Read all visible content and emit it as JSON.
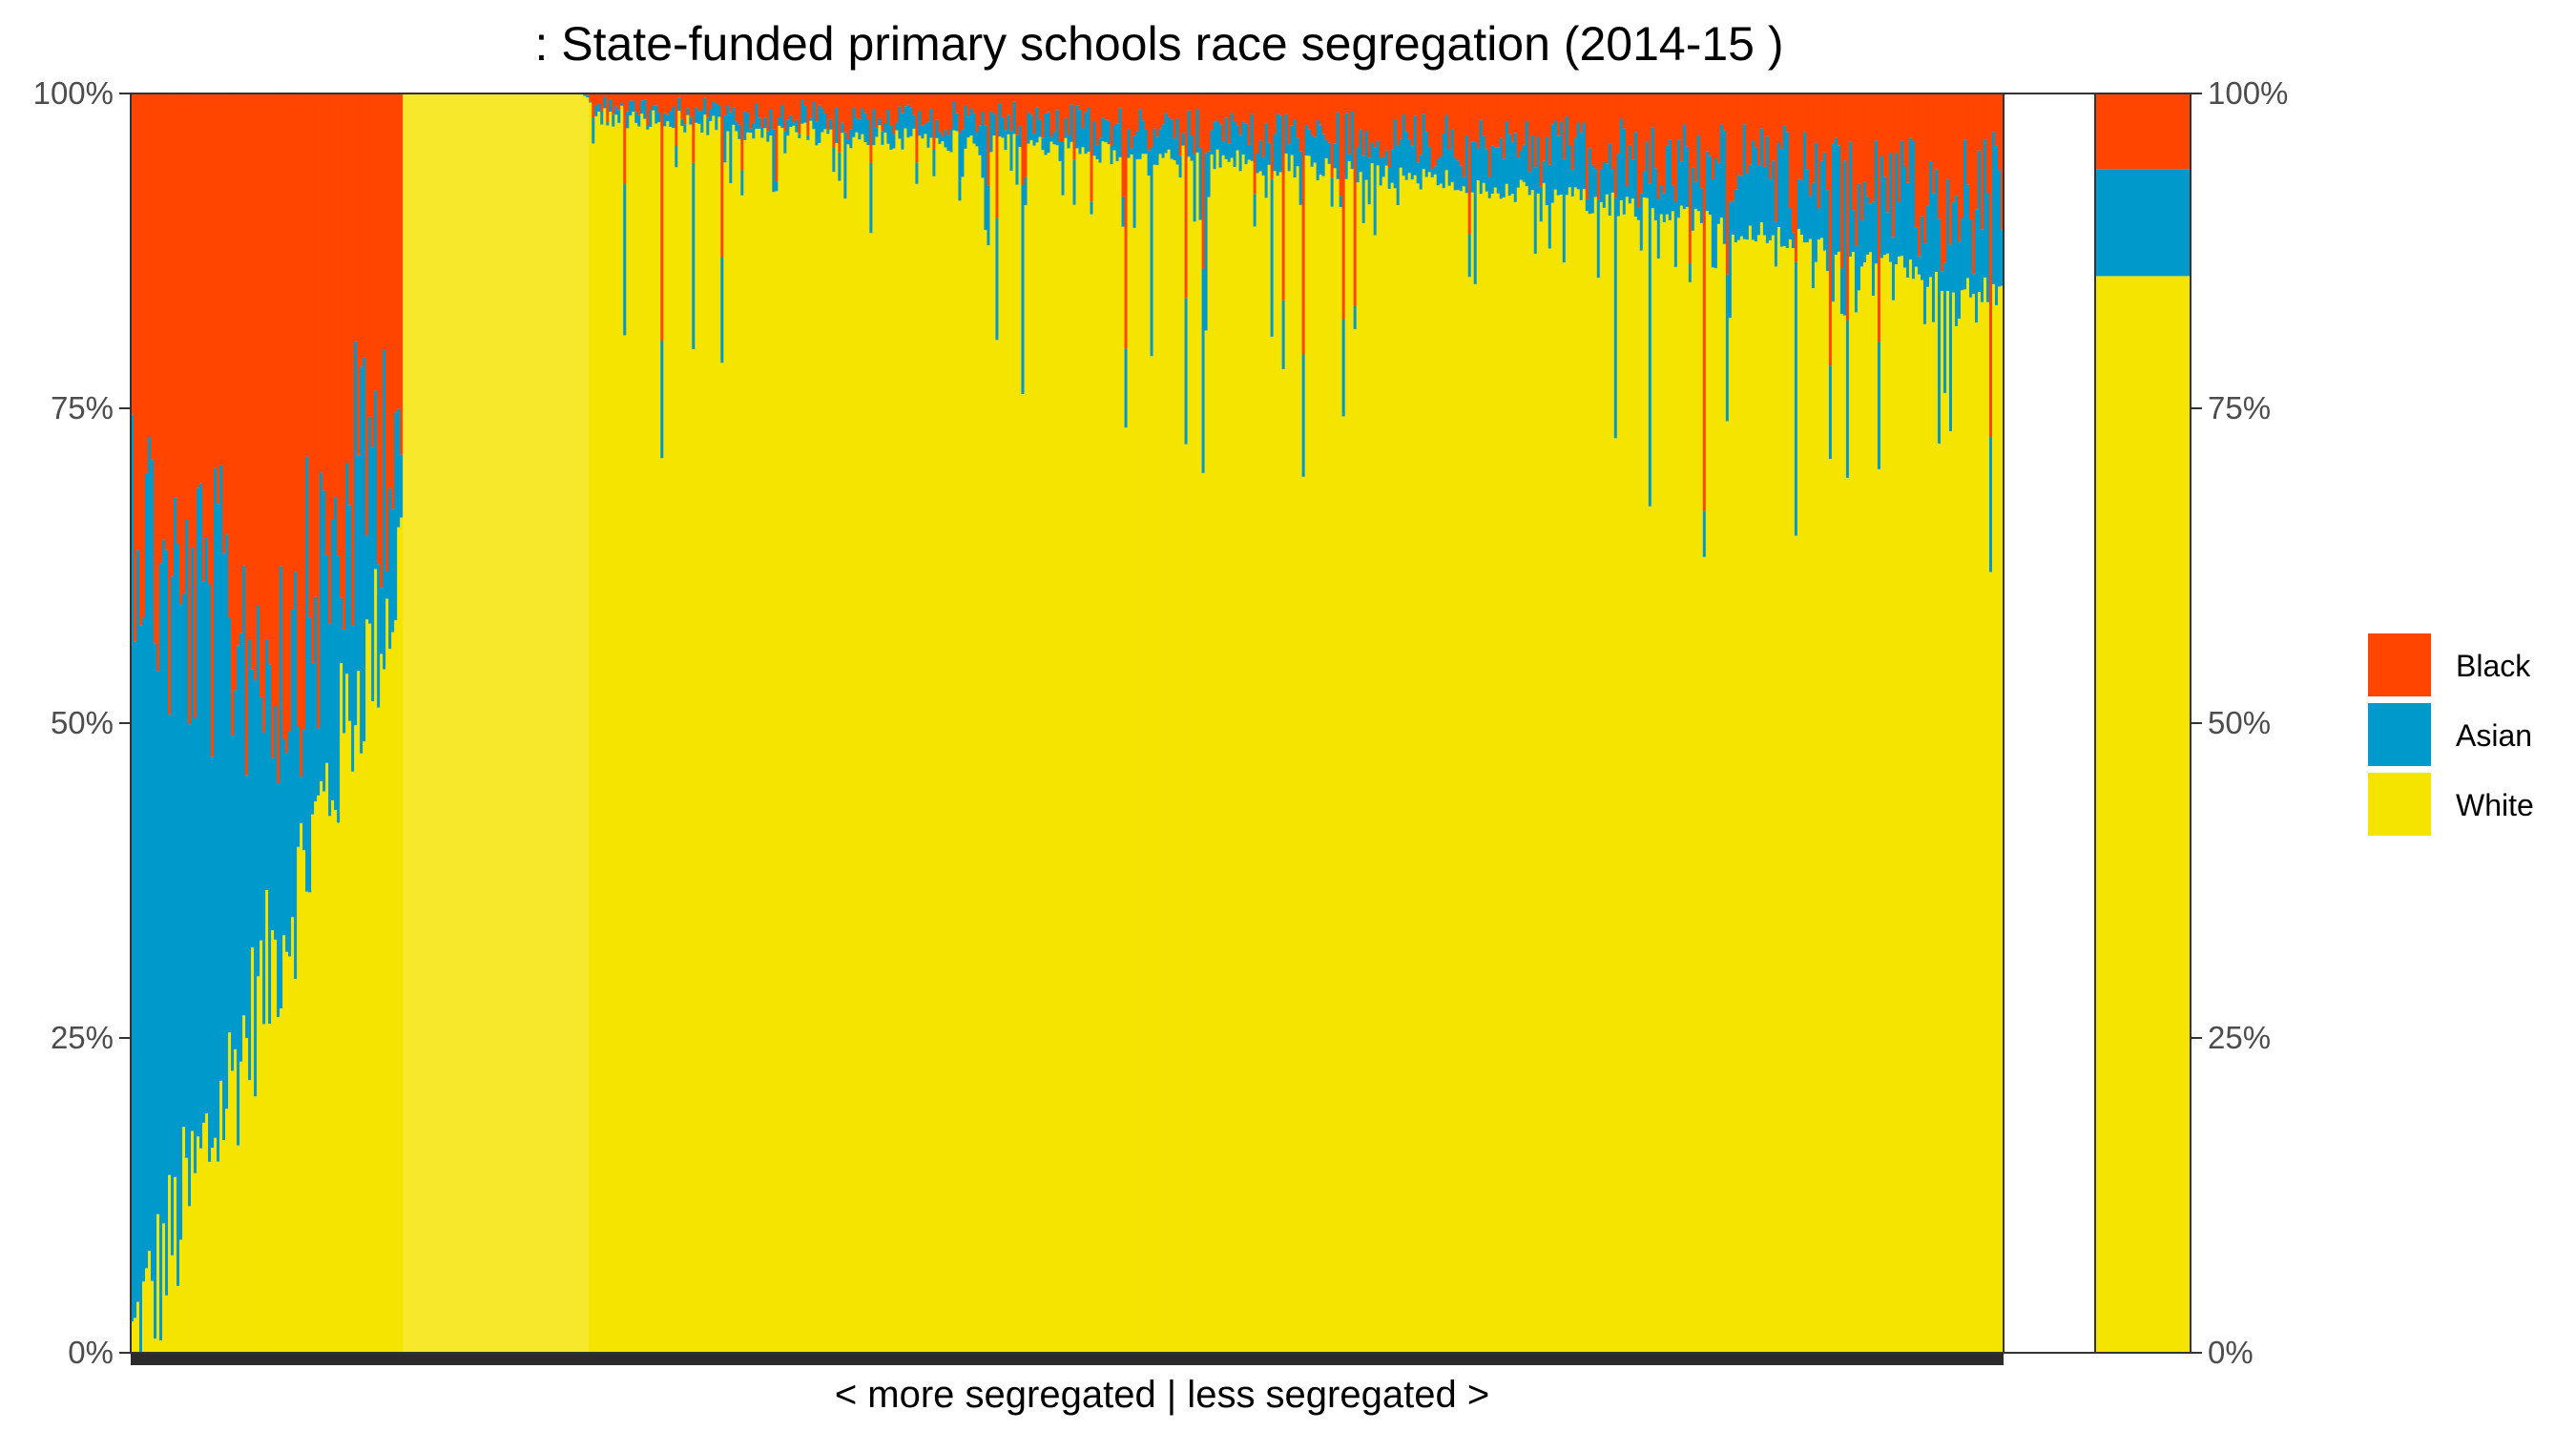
{
  "chart_data": {
    "type": "bar",
    "stacked": true,
    "normalized": true,
    "title": ": State-funded primary schools race segregation (2014-15 )",
    "xlabel": "< more segregated | less segregated >",
    "ylabel": "",
    "ylim": [
      0,
      1
    ],
    "y_tick_labels": [
      "0%",
      "25%",
      "50%",
      "75%",
      "100%"
    ],
    "y_ticks": [
      0,
      0.25,
      0.5,
      0.75,
      1.0
    ],
    "legend": {
      "placement": "right",
      "entries": [
        "Black",
        "Asian",
        "White"
      ]
    },
    "colors": {
      "Black": "#ff4500",
      "Asian": "#0099cc",
      "White": "#f5e400",
      "White_schools": "#f7e82c"
    },
    "series_order_bottom_to_top": [
      "White",
      "Asian",
      "Black"
    ],
    "schools_trend": {
      "x_position": [
        0.0,
        0.02,
        0.05,
        0.08,
        0.1,
        0.12,
        0.14,
        0.145,
        0.146,
        0.24,
        0.246,
        0.3,
        0.4,
        0.5,
        0.6,
        0.7,
        0.8,
        0.9,
        1.0
      ],
      "white_share": [
        0.0,
        0.08,
        0.2,
        0.33,
        0.42,
        0.52,
        0.6,
        0.64,
        1.0,
        1.0,
        0.995,
        0.985,
        0.975,
        0.965,
        0.955,
        0.94,
        0.92,
        0.89,
        0.85
      ],
      "black_share": [
        0.3,
        0.4,
        0.42,
        0.44,
        0.4,
        0.32,
        0.25,
        0.24,
        0.0,
        0.0,
        0.002,
        0.006,
        0.01,
        0.015,
        0.02,
        0.025,
        0.03,
        0.04,
        0.06
      ]
    },
    "overall": {
      "White": 0.855,
      "Asian": 0.085,
      "Black": 0.06
    }
  }
}
